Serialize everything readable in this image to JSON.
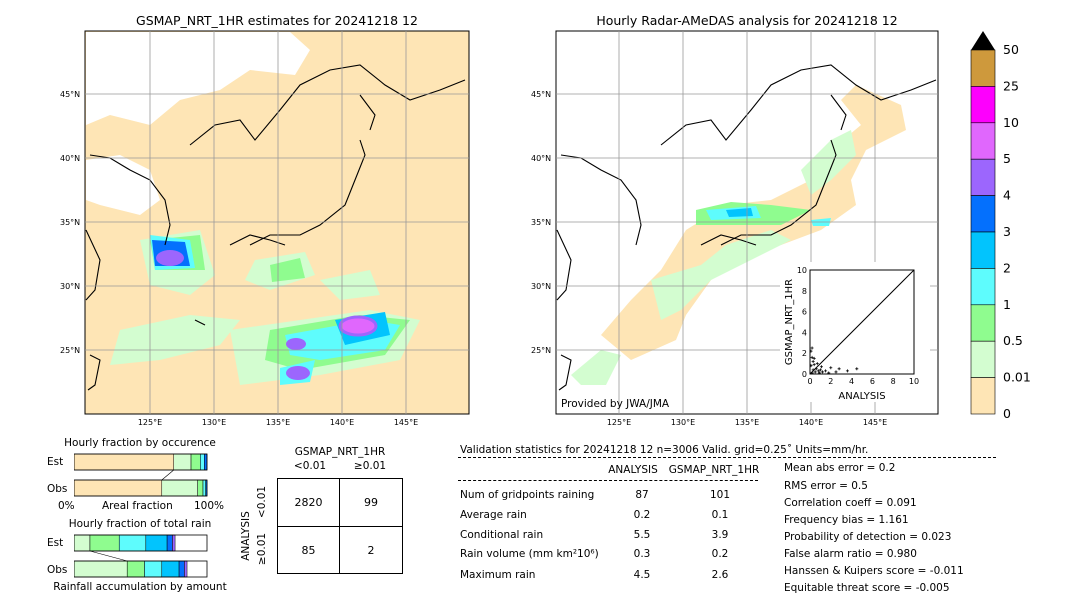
{
  "colors": {
    "land": "#ffffff",
    "sea": "#ffffff",
    "scale": [
      "#fee5b5",
      "#d3fdd0",
      "#8ffc8f",
      "#5efcfd",
      "#02c4fd",
      "#0470fd",
      "#9c66fd",
      "#e067fd",
      "#fd00fd",
      "#ce993c",
      "#000000"
    ]
  },
  "left_map": {
    "title": "GSMAP_NRT_1HR estimates for 20241218 12",
    "lat_ticks": [
      "45°N",
      "40°N",
      "35°N",
      "30°N",
      "25°N"
    ],
    "lon_ticks": [
      "125°E",
      "130°E",
      "135°E",
      "140°E",
      "145°E"
    ]
  },
  "right_map": {
    "title": "Hourly Radar-AMeDAS analysis for 20241218 12",
    "lat_ticks": [
      "45°N",
      "40°N",
      "35°N",
      "30°N",
      "25°N"
    ],
    "lon_ticks": [
      "125°E",
      "130°E",
      "135°E",
      "140°E",
      "145°E"
    ],
    "credit": "Provided by JWA/JMA"
  },
  "colorbar": {
    "labels": [
      "50",
      "25",
      "10",
      "5",
      "4",
      "3",
      "2",
      "1",
      "0.5",
      "0.01",
      "0"
    ]
  },
  "chart_data": [
    {
      "type": "scatter",
      "xlabel": "ANALYSIS",
      "ylabel": "GSMAP_NRT_1HR",
      "xlim": [
        0,
        10
      ],
      "ylim": [
        0,
        10
      ],
      "xticks": [
        "0",
        "2",
        "4",
        "6",
        "8",
        "10"
      ],
      "yticks": [
        "0",
        "2",
        "4",
        "6",
        "8",
        "10"
      ],
      "points": [
        [
          0.1,
          2.2
        ],
        [
          0.2,
          1.6
        ],
        [
          0.3,
          1.2
        ],
        [
          0.4,
          0.9
        ],
        [
          0.6,
          0.5
        ],
        [
          0.8,
          0.3
        ],
        [
          1.0,
          0.4
        ],
        [
          1.2,
          0.2
        ],
        [
          1.5,
          0.3
        ],
        [
          1.8,
          0.1
        ],
        [
          2.0,
          0.6
        ],
        [
          2.5,
          0.2
        ],
        [
          2.8,
          0.5
        ],
        [
          3.6,
          0.3
        ],
        [
          4.5,
          0.5
        ],
        [
          0.2,
          0.1
        ],
        [
          0.5,
          0.2
        ],
        [
          0.1,
          0.8
        ],
        [
          0.3,
          0.4
        ],
        [
          0.7,
          1.0
        ],
        [
          1.1,
          0.7
        ],
        [
          0.9,
          0.1
        ],
        [
          0.4,
          1.5
        ],
        [
          0.2,
          2.5
        ]
      ]
    },
    {
      "type": "bar",
      "title": "Hourly fraction by occurence",
      "categories": [
        "Est",
        "Obs"
      ],
      "series": [
        {
          "values": [
            0.75,
            0.66
          ]
        },
        {
          "values": [
            0.13,
            0.27
          ]
        },
        {
          "values": [
            0.07,
            0.04
          ]
        },
        {
          "values": [
            0.03,
            0.02
          ]
        },
        {
          "values": [
            0.02,
            0.01
          ]
        }
      ],
      "xlabel_left": "0%",
      "xlabel_mid": "Areal fraction",
      "xlabel_right": "100%"
    },
    {
      "type": "bar",
      "title": "Hourly fraction of total rain",
      "categories": [
        "Est",
        "Obs"
      ],
      "series": [
        {
          "values": [
            0.12,
            0.4
          ]
        },
        {
          "values": [
            0.22,
            0.13
          ]
        },
        {
          "values": [
            0.2,
            0.13
          ]
        },
        {
          "values": [
            0.16,
            0.13
          ]
        },
        {
          "values": [
            0.04,
            0.04
          ]
        },
        {
          "values": [
            0.02,
            0.02
          ]
        }
      ],
      "xlabel": "Rainfall accumulation by amount"
    }
  ],
  "contingency": {
    "col_title": "GSMAP_NRT_1HR",
    "col_lt": "<0.01",
    "col_ge": "≥0.01",
    "row_title": "ANALYSIS",
    "row_lt": "<0.01",
    "row_ge": "≥0.01",
    "a": "2820",
    "b": "99",
    "c": "85",
    "d": "2"
  },
  "validation": {
    "header": "Validation statistics for 20241218 12  n=3006 Valid. grid=0.25˚ Units=mm/hr.",
    "col_analysis": "ANALYSIS",
    "col_gsmap": "GSMAP_NRT_1HR",
    "rows": [
      {
        "label": "Num of gridpoints raining",
        "analysis": "87",
        "gsmap": "101"
      },
      {
        "label": "Average rain",
        "analysis": "0.2",
        "gsmap": "0.1"
      },
      {
        "label": "Conditional rain",
        "analysis": "5.5",
        "gsmap": "3.9"
      },
      {
        "label": "Rain volume (mm km²10⁶)",
        "analysis": "0.3",
        "gsmap": "0.2"
      },
      {
        "label": "Maximum rain",
        "analysis": "4.5",
        "gsmap": "2.6"
      }
    ],
    "scores": [
      "Mean abs error =    0.2",
      "RMS error =    0.5",
      "Correlation coeff =  0.091",
      "Frequency bias =  1.161",
      "Probability of detection =  0.023",
      "False alarm ratio =  0.980",
      "Hanssen & Kuipers score = -0.011",
      "Equitable threat score = -0.005"
    ]
  }
}
